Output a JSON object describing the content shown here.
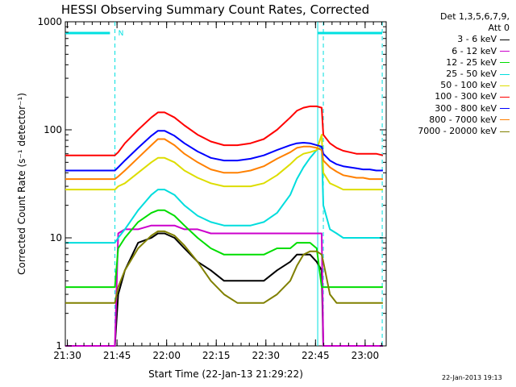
{
  "chart_data": {
    "type": "line",
    "title": "HESSI Observing Summary Count Rates, Corrected",
    "ylabel": "Corrected Count Rate (s⁻¹ detector⁻¹)",
    "xlabel": "Start Time (22-Jan-13 21:29:22)",
    "y_scale": "log",
    "ylim": [
      1,
      1000
    ],
    "y_ticks": [
      1,
      10,
      100,
      1000
    ],
    "y_tick_labels": [
      "1",
      "10",
      "100",
      "1000"
    ],
    "xlim_minutes": [
      0,
      97
    ],
    "x_ticks_minutes": [
      0.63,
      15.63,
      30.63,
      45.63,
      60.63,
      75.63,
      90.63
    ],
    "x_tick_labels": [
      "21:30",
      "21:45",
      "22:00",
      "22:15",
      "22:30",
      "22:45",
      "23:00"
    ],
    "grid": false,
    "legend_position": "outside-right",
    "legend_header": [
      "Det 1,3,5,6,7,9,",
      "Att 0"
    ],
    "annotation_marker": "N",
    "x_minutes": [
      0,
      14,
      15,
      16,
      18,
      22,
      26,
      28,
      30,
      33,
      36,
      40,
      44,
      48,
      52,
      56,
      60,
      64,
      68,
      70,
      72,
      74,
      76,
      77.5,
      78,
      80,
      82,
      84,
      86,
      88,
      90,
      92,
      94,
      96
    ],
    "series": [
      {
        "name": "3 - 6 keV",
        "color": "#000000",
        "values": [
          1,
          1,
          1,
          3,
          5,
          9,
          10,
          11,
          11,
          10,
          8,
          6,
          5,
          4,
          4,
          4,
          4,
          5,
          6,
          7,
          7,
          7,
          6,
          5,
          1,
          1,
          1,
          1,
          1,
          1,
          1,
          1,
          1,
          1
        ]
      },
      {
        "name": "6 - 12 keV",
        "color": "#cc00cc",
        "values": [
          1,
          1,
          1,
          11,
          12,
          12,
          13,
          13,
          13,
          13,
          12,
          12,
          11,
          11,
          11,
          11,
          11,
          11,
          11,
          11,
          11,
          11,
          11,
          11,
          1,
          1,
          1,
          1,
          1,
          1,
          1,
          1,
          1,
          1
        ]
      },
      {
        "name": "12 - 25 keV",
        "color": "#00dd00",
        "values": [
          3.5,
          3.5,
          3.5,
          8,
          10,
          14,
          17,
          18,
          18,
          16,
          13,
          10,
          8,
          7,
          7,
          7,
          7,
          8,
          8,
          9,
          9,
          9,
          8,
          3.5,
          3.5,
          3.5,
          3.5,
          3.5,
          3.5,
          3.5,
          3.5,
          3.5,
          3.5,
          3.5
        ]
      },
      {
        "name": "25 - 50 keV",
        "color": "#00dddd",
        "values": [
          9,
          9,
          9,
          10,
          12,
          18,
          25,
          28,
          28,
          25,
          20,
          16,
          14,
          13,
          13,
          13,
          14,
          17,
          25,
          35,
          45,
          55,
          65,
          70,
          20,
          12,
          11,
          10,
          10,
          10,
          10,
          10,
          10,
          10
        ]
      },
      {
        "name": "50 - 100 keV",
        "color": "#dddd00",
        "values": [
          28,
          28,
          28,
          30,
          32,
          40,
          50,
          55,
          55,
          50,
          42,
          36,
          32,
          30,
          30,
          30,
          32,
          38,
          48,
          55,
          60,
          62,
          65,
          90,
          40,
          32,
          30,
          28,
          28,
          28,
          28,
          28,
          28,
          28
        ]
      },
      {
        "name": "100 - 300 keV",
        "color": "#ff0000",
        "values": [
          58,
          58,
          58,
          62,
          75,
          100,
          130,
          145,
          145,
          130,
          110,
          90,
          78,
          72,
          72,
          75,
          82,
          100,
          130,
          150,
          160,
          165,
          165,
          160,
          90,
          75,
          68,
          64,
          62,
          60,
          60,
          60,
          60,
          58
        ]
      },
      {
        "name": "300 - 800 keV",
        "color": "#0000ff",
        "values": [
          42,
          42,
          42,
          45,
          52,
          68,
          88,
          98,
          98,
          88,
          75,
          63,
          55,
          52,
          52,
          54,
          58,
          65,
          72,
          75,
          76,
          75,
          72,
          70,
          60,
          52,
          48,
          46,
          45,
          44,
          43,
          43,
          42,
          42
        ]
      },
      {
        "name": "800 - 7000 keV",
        "color": "#ff8000",
        "values": [
          35,
          35,
          35,
          37,
          42,
          55,
          72,
          82,
          82,
          72,
          60,
          50,
          43,
          40,
          40,
          42,
          46,
          54,
          62,
          68,
          70,
          70,
          68,
          65,
          52,
          45,
          41,
          38,
          37,
          36,
          36,
          35,
          35,
          35
        ]
      },
      {
        "name": "7000 - 20000 keV",
        "color": "#808000",
        "values": [
          2.5,
          2.5,
          2.5,
          3.5,
          5,
          8,
          10.5,
          11.5,
          11.5,
          10.5,
          8.5,
          6,
          4,
          3,
          2.5,
          2.5,
          2.5,
          3,
          4,
          5.5,
          7,
          7.5,
          7.5,
          7,
          6,
          3,
          2.5,
          2.5,
          2.5,
          2.5,
          2.5,
          2.5,
          2.5,
          2.5
        ]
      }
    ]
  },
  "timestamp": "22-Jan-2013 19:13"
}
